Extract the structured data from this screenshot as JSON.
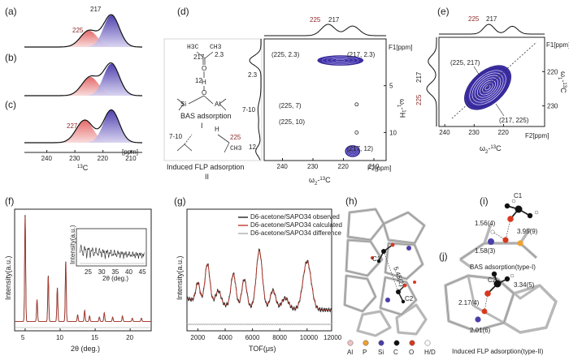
{
  "panels": {
    "a": "(a)",
    "b": "(b)",
    "c": "(c)",
    "d": "(d)",
    "e": "(e)",
    "f": "(f)",
    "g": "(g)",
    "h": "(h)",
    "i": "(i)",
    "j": "(j)"
  },
  "chart_data": [
    {
      "id": "abc",
      "type": "line",
      "x_label": "13C",
      "x_unit": "[ppm]",
      "xlim": [
        248,
        206
      ],
      "x_ticks": [
        240,
        230,
        220,
        210
      ],
      "peaks": {
        "a": [
          {
            "pos": 225,
            "label": "225"
          },
          {
            "pos": 217,
            "label": "217"
          }
        ],
        "b": [],
        "c": [
          {
            "pos": 227,
            "label": "227"
          }
        ]
      },
      "series": [
        {
          "id": "a",
          "components": [
            {
              "center": 225,
              "width": 3.0,
              "height": 0.42,
              "color": "#e86a6a"
            },
            {
              "center": 217,
              "width": 2.8,
              "height": 0.82,
              "color": "#5040b8"
            }
          ]
        },
        {
          "id": "b",
          "components": [
            {
              "center": 224.5,
              "width": 3.0,
              "height": 0.48,
              "color": "#e86a6a"
            },
            {
              "center": 217,
              "width": 2.8,
              "height": 0.82,
              "color": "#5040b8"
            }
          ]
        },
        {
          "id": "c",
          "components": [
            {
              "center": 226.5,
              "width": 3.0,
              "height": 0.58,
              "color": "#e86a6a"
            },
            {
              "center": 217,
              "width": 2.8,
              "height": 0.84,
              "color": "#5040b8"
            }
          ]
        }
      ]
    },
    {
      "id": "d",
      "type": "heatmap",
      "x_label": "ω2-13C",
      "x_unit": "F2[ppm]",
      "y_label": "ω1-1H",
      "y_unit": "F1[ppm]",
      "xlim": [
        246,
        206
      ],
      "ylim": [
        0,
        13
      ],
      "x_ticks": [
        240,
        230,
        220,
        210
      ],
      "y_ticks_right": [
        5,
        10
      ],
      "y_ticks_left": [
        "2.3",
        "7-10",
        "12"
      ],
      "top_peaks": [
        "225",
        "217"
      ],
      "cross_peaks": [
        {
          "label": "(225, 2.3)",
          "x": 225,
          "y": 2.3
        },
        {
          "label": "(217, 2.3)",
          "x": 217,
          "y": 2.3
        },
        {
          "label": "(225, 7)",
          "x": 225,
          "y": 7
        },
        {
          "label": "(225, 10)",
          "x": 225,
          "y": 10
        },
        {
          "label": "(217, 12)",
          "x": 217,
          "y": 12
        }
      ],
      "structures": {
        "bas_label": "BAS adsorption",
        "bas_roman": "I",
        "flp_label": "Induced FLP adsorption",
        "flp_roman": "II",
        "atoms": {
          "h3c": "H3C",
          "ch3": "CH3",
          "c217": "217",
          "c23": "2.3",
          "o": "O",
          "h": "H",
          "n12": "12",
          "si": "Si",
          "al": "Al",
          "o2": "O",
          "c225": "225",
          "n710": "7-10",
          "h2": "H",
          "ch3b": "CH3"
        }
      }
    },
    {
      "id": "e",
      "type": "heatmap",
      "x_label": "ω2-13C",
      "x_unit": "F2[ppm]",
      "y_label": "ω1-13C",
      "y_unit": "F1[ppm]",
      "xlim": [
        242,
        206
      ],
      "x_ticks": [
        240,
        230,
        220
      ],
      "y_ticks": [
        220,
        230
      ],
      "top_peaks": [
        "225",
        "217"
      ],
      "side_peaks": [
        "217",
        "225"
      ],
      "cross_peaks": [
        {
          "label": "(225, 217)",
          "x": 225,
          "y": 217
        },
        {
          "label": "(217, 225)",
          "x": 217,
          "y": 225
        }
      ]
    },
    {
      "id": "f",
      "type": "line",
      "x_label": "2θ (deg.)",
      "y_label": "Intensity(a.u.)",
      "xlim": [
        3.5,
        23
      ],
      "x_ticks": [
        5,
        10,
        15,
        20
      ],
      "peaks": [
        {
          "x": 5.0,
          "h": 0.98
        },
        {
          "x": 6.7,
          "h": 0.2
        },
        {
          "x": 8.3,
          "h": 0.42
        },
        {
          "x": 9.6,
          "h": 0.31
        },
        {
          "x": 10.8,
          "h": 0.55
        },
        {
          "x": 12.5,
          "h": 0.06
        },
        {
          "x": 13.5,
          "h": 0.1
        },
        {
          "x": 14.2,
          "h": 0.05
        },
        {
          "x": 15.6,
          "h": 0.04
        },
        {
          "x": 16.3,
          "h": 0.08
        },
        {
          "x": 17.5,
          "h": 0.04
        },
        {
          "x": 18.9,
          "h": 0.05
        },
        {
          "x": 20.3,
          "h": 0.03
        },
        {
          "x": 21.6,
          "h": 0.03
        }
      ],
      "inset": {
        "x_label": "2θ (deg.)",
        "y_label": "Intensity(a.u.)",
        "x_ticks": [
          25,
          30,
          35,
          40,
          45
        ]
      }
    },
    {
      "id": "g",
      "type": "line",
      "x_label": "TOF(μs)",
      "y_label": "Intensity(a.u.)",
      "xlim": [
        1200,
        11800
      ],
      "x_ticks": [
        2000,
        4000,
        6000,
        8000,
        10000,
        12000
      ],
      "legend": [
        "D6-acetone/SAPO34 observed",
        "D6-acetone/SAPO34 calculated",
        "D6-acetone/SAPO34 difference"
      ],
      "legend_colors": [
        "#222222",
        "#c0392b",
        "#aaaaaa"
      ],
      "peaks": [
        {
          "x": 2000,
          "h": 0.2,
          "w": 150
        },
        {
          "x": 2700,
          "h": 0.42,
          "w": 180
        },
        {
          "x": 3500,
          "h": 0.15,
          "w": 200
        },
        {
          "x": 4600,
          "h": 0.35,
          "w": 180
        },
        {
          "x": 5400,
          "h": 0.3,
          "w": 180
        },
        {
          "x": 6500,
          "h": 0.62,
          "w": 220
        },
        {
          "x": 7500,
          "h": 0.2,
          "w": 200
        },
        {
          "x": 8400,
          "h": 0.12,
          "w": 250
        },
        {
          "x": 10000,
          "h": 0.52,
          "w": 300
        }
      ]
    }
  ],
  "structures_h": {
    "labels": {
      "c1": "C1",
      "c2": "C2",
      "dist": "5.45(2)"
    },
    "legend": [
      "Al",
      "P",
      "Si",
      "C",
      "O",
      "H/D"
    ],
    "legend_colors": [
      "#f3c4c4",
      "#f0a030",
      "#4a3fa8",
      "#111111",
      "#d9381e",
      "#ffffff"
    ]
  },
  "structures_i": {
    "c1": "C1",
    "d1": "1.56(4)",
    "d2": "3.95(9)",
    "d3": "1.58(3)",
    "caption": "BAS adsorption(type-I)"
  },
  "structures_j": {
    "c2": "C2",
    "d1": "3.34(5)",
    "d2": "2.17(4)",
    "d3": "2.01(6)",
    "caption": "Induced FLP adsorption(type-II)"
  }
}
